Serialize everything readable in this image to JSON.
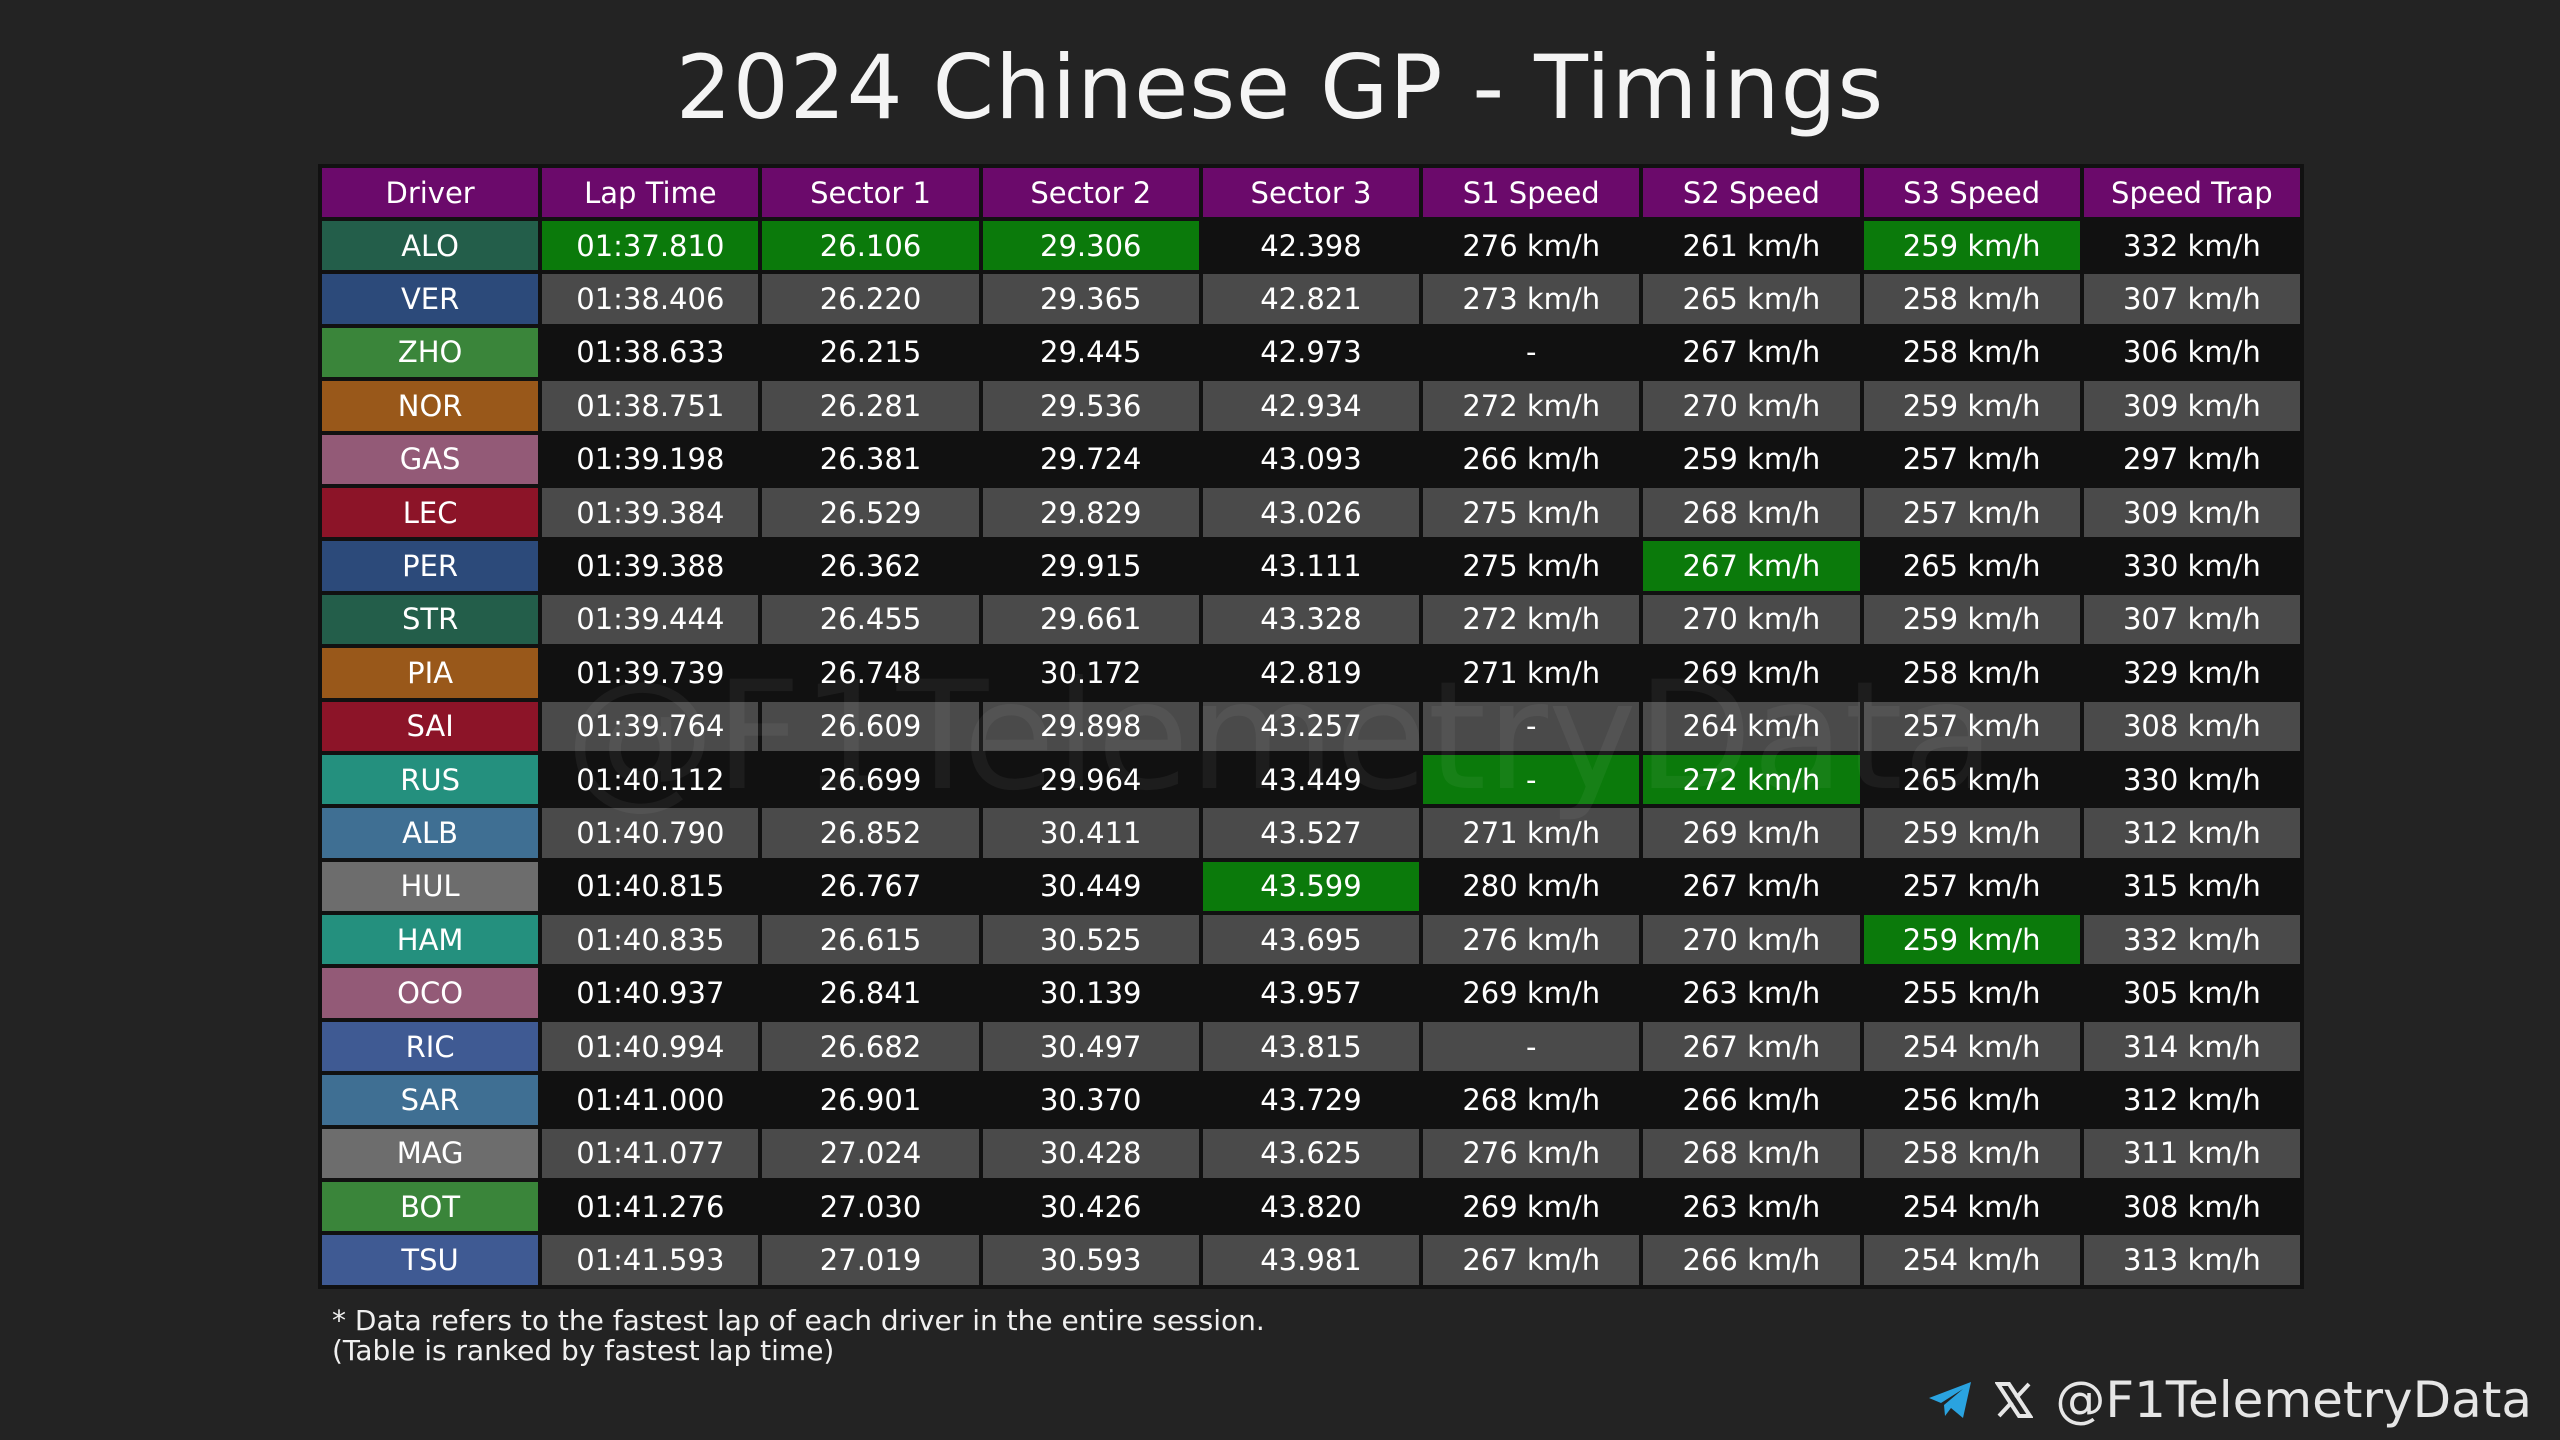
{
  "title": "2024 Chinese GP - Timings",
  "watermark": "@F1TelemetryData",
  "colors": {
    "header": "#6b0a6b",
    "best": "#0b7a0b",
    "row_dark": "#111111",
    "row_light": "#4a4a4a"
  },
  "chart_data": {
    "type": "table",
    "title": "2024 Chinese GP - Timings",
    "columns": [
      "Driver",
      "Lap Time",
      "Sector 1",
      "Sector 2",
      "Sector 3",
      "S1 Speed",
      "S2 Speed",
      "S3 Speed",
      "Speed Trap"
    ],
    "rows": [
      {
        "driver": "ALO",
        "color": "#235e4a",
        "cells": [
          "01:37.810",
          "26.106",
          "29.306",
          "42.398",
          "276 km/h",
          "261 km/h",
          "259 km/h",
          "332 km/h"
        ],
        "best": [
          1,
          2,
          3,
          7
        ]
      },
      {
        "driver": "VER",
        "color": "#2c4a7a",
        "cells": [
          "01:38.406",
          "26.220",
          "29.365",
          "42.821",
          "273 km/h",
          "265 km/h",
          "258 km/h",
          "307 km/h"
        ],
        "best": []
      },
      {
        "driver": "ZHO",
        "color": "#3a853a",
        "cells": [
          "01:38.633",
          "26.215",
          "29.445",
          "42.973",
          "-",
          "267 km/h",
          "258 km/h",
          "306 km/h"
        ],
        "best": []
      },
      {
        "driver": "NOR",
        "color": "#99581a",
        "cells": [
          "01:38.751",
          "26.281",
          "29.536",
          "42.934",
          "272 km/h",
          "270 km/h",
          "259 km/h",
          "309 km/h"
        ],
        "best": []
      },
      {
        "driver": "GAS",
        "color": "#935a77",
        "cells": [
          "01:39.198",
          "26.381",
          "29.724",
          "43.093",
          "266 km/h",
          "259 km/h",
          "257 km/h",
          "297 km/h"
        ],
        "best": []
      },
      {
        "driver": "LEC",
        "color": "#8c1428",
        "cells": [
          "01:39.384",
          "26.529",
          "29.829",
          "43.026",
          "275 km/h",
          "268 km/h",
          "257 km/h",
          "309 km/h"
        ],
        "best": []
      },
      {
        "driver": "PER",
        "color": "#2c4a7a",
        "cells": [
          "01:39.388",
          "26.362",
          "29.915",
          "43.111",
          "275 km/h",
          "267 km/h",
          "265 km/h",
          "330 km/h"
        ],
        "best": [
          6
        ]
      },
      {
        "driver": "STR",
        "color": "#235e4a",
        "cells": [
          "01:39.444",
          "26.455",
          "29.661",
          "43.328",
          "272 km/h",
          "270 km/h",
          "259 km/h",
          "307 km/h"
        ],
        "best": []
      },
      {
        "driver": "PIA",
        "color": "#99581a",
        "cells": [
          "01:39.739",
          "26.748",
          "30.172",
          "42.819",
          "271 km/h",
          "269 km/h",
          "258 km/h",
          "329 km/h"
        ],
        "best": []
      },
      {
        "driver": "SAI",
        "color": "#8c1428",
        "cells": [
          "01:39.764",
          "26.609",
          "29.898",
          "43.257",
          "-",
          "264 km/h",
          "257 km/h",
          "308 km/h"
        ],
        "best": []
      },
      {
        "driver": "RUS",
        "color": "#24907e",
        "cells": [
          "01:40.112",
          "26.699",
          "29.964",
          "43.449",
          "-",
          "272 km/h",
          "265 km/h",
          "330 km/h"
        ],
        "best": [
          5,
          6
        ]
      },
      {
        "driver": "ALB",
        "color": "#3f6f93",
        "cells": [
          "01:40.790",
          "26.852",
          "30.411",
          "43.527",
          "271 km/h",
          "269 km/h",
          "259 km/h",
          "312 km/h"
        ],
        "best": []
      },
      {
        "driver": "HUL",
        "color": "#6d6d6d",
        "cells": [
          "01:40.815",
          "26.767",
          "30.449",
          "43.599",
          "280 km/h",
          "267 km/h",
          "257 km/h",
          "315 km/h"
        ],
        "best": [
          4
        ]
      },
      {
        "driver": "HAM",
        "color": "#24907e",
        "cells": [
          "01:40.835",
          "26.615",
          "30.525",
          "43.695",
          "276 km/h",
          "270 km/h",
          "259 km/h",
          "332 km/h"
        ],
        "best": [
          7
        ]
      },
      {
        "driver": "OCO",
        "color": "#935a77",
        "cells": [
          "01:40.937",
          "26.841",
          "30.139",
          "43.957",
          "269 km/h",
          "263 km/h",
          "255 km/h",
          "305 km/h"
        ],
        "best": []
      },
      {
        "driver": "RIC",
        "color": "#3f5a93",
        "cells": [
          "01:40.994",
          "26.682",
          "30.497",
          "43.815",
          "-",
          "267 km/h",
          "254 km/h",
          "314 km/h"
        ],
        "best": []
      },
      {
        "driver": "SAR",
        "color": "#3f6f93",
        "cells": [
          "01:41.000",
          "26.901",
          "30.370",
          "43.729",
          "268 km/h",
          "266 km/h",
          "256 km/h",
          "312 km/h"
        ],
        "best": []
      },
      {
        "driver": "MAG",
        "color": "#6d6d6d",
        "cells": [
          "01:41.077",
          "27.024",
          "30.428",
          "43.625",
          "276 km/h",
          "268 km/h",
          "258 km/h",
          "311 km/h"
        ],
        "best": []
      },
      {
        "driver": "BOT",
        "color": "#3a853a",
        "cells": [
          "01:41.276",
          "27.030",
          "30.426",
          "43.820",
          "269 km/h",
          "263 km/h",
          "254 km/h",
          "308 km/h"
        ],
        "best": []
      },
      {
        "driver": "TSU",
        "color": "#3f5a93",
        "cells": [
          "01:41.593",
          "27.019",
          "30.593",
          "43.981",
          "267 km/h",
          "266 km/h",
          "254 km/h",
          "313 km/h"
        ],
        "best": []
      }
    ]
  },
  "footnote": {
    "line1": "* Data refers to the fastest lap of each driver in the entire session.",
    "line2": "(Table is ranked by fastest lap time)"
  },
  "credit": {
    "icons": [
      "telegram-icon",
      "x-icon"
    ],
    "handle": "@F1TelemetryData"
  }
}
